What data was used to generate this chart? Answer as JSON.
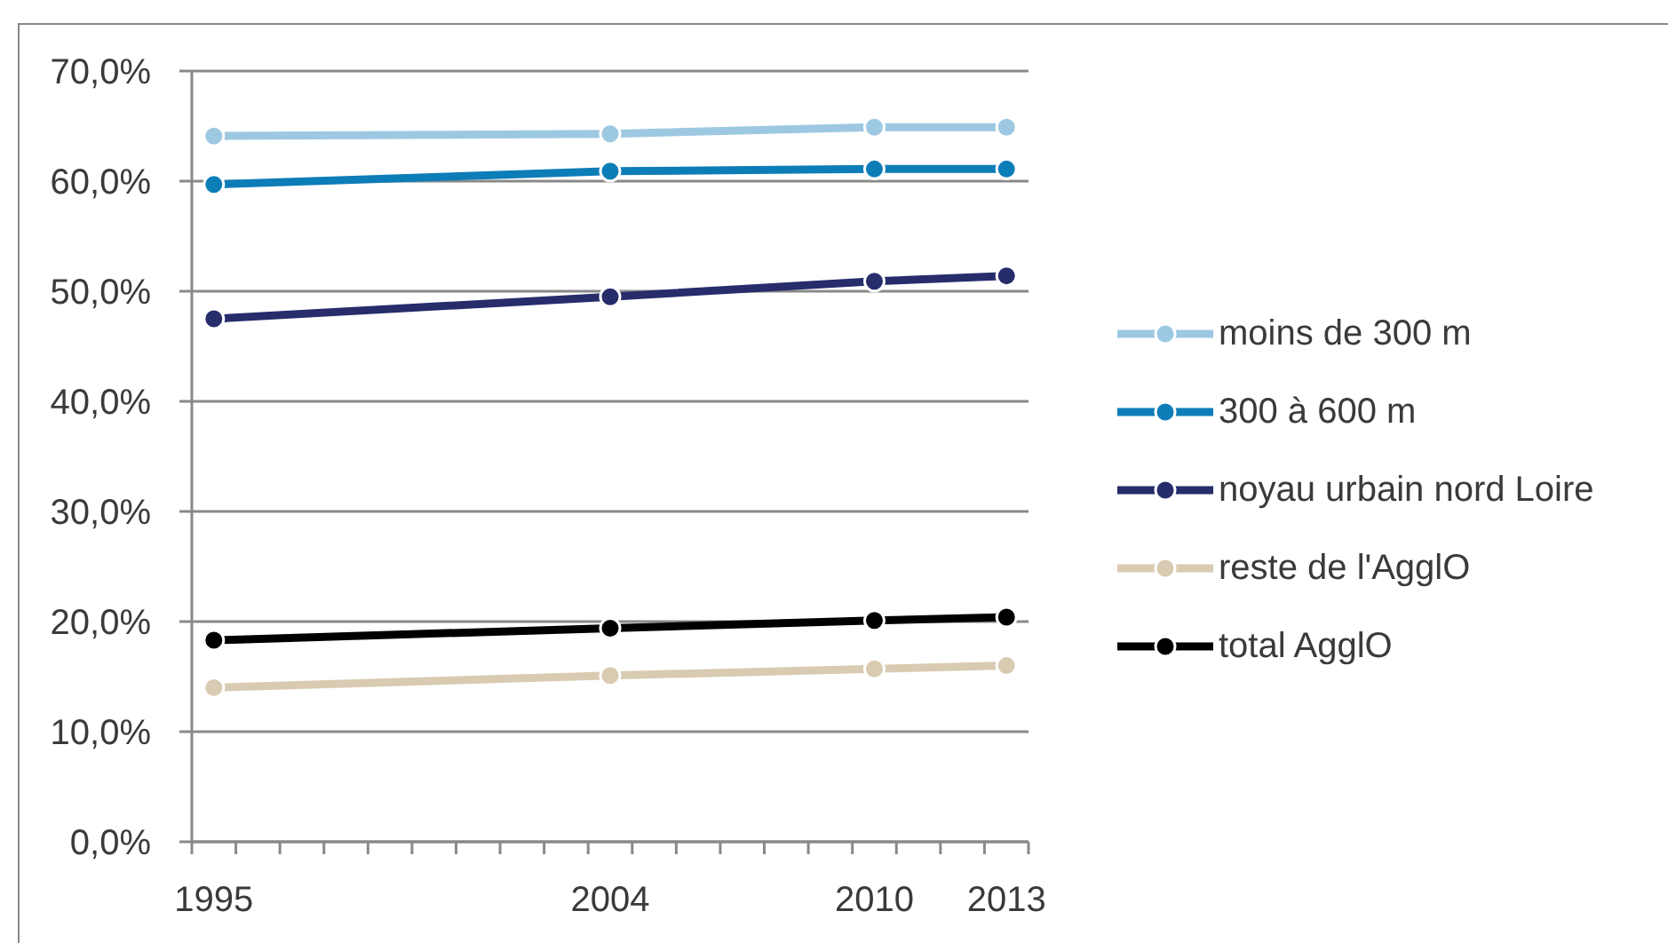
{
  "chart_data": {
    "type": "line",
    "x": [
      1995,
      2004,
      2010,
      2013
    ],
    "xlim": [
      1994.5,
      2013.5
    ],
    "xticks": [
      {
        "value": 1994.5,
        "label": null
      },
      1995,
      {
        "value": 1995.5,
        "label": null
      },
      {
        "value": 1996.5,
        "label": null
      },
      {
        "value": 1997.5,
        "label": null
      },
      {
        "value": 1998.5,
        "label": null
      },
      {
        "value": 1999.5,
        "label": null
      },
      {
        "value": 2000.5,
        "label": null
      },
      {
        "value": 2001.5,
        "label": null
      },
      {
        "value": 2002.5,
        "label": null
      },
      {
        "value": 2003.5,
        "label": null
      },
      2004,
      {
        "value": 2004.5,
        "label": null
      },
      {
        "value": 2005.5,
        "label": null
      },
      {
        "value": 2006.5,
        "label": null
      },
      {
        "value": 2007.5,
        "label": null
      },
      {
        "value": 2008.5,
        "label": null
      },
      {
        "value": 2009.5,
        "label": null
      },
      2010,
      {
        "value": 2010.5,
        "label": null
      },
      {
        "value": 2011.5,
        "label": null
      },
      {
        "value": 2012.5,
        "label": null
      },
      2013,
      {
        "value": 2013.5,
        "label": null
      }
    ],
    "ylim": [
      0,
      70
    ],
    "yticks": [
      {
        "value": 0,
        "label": "0,0%"
      },
      {
        "value": 10,
        "label": "10,0%"
      },
      {
        "value": 20,
        "label": "20,0%"
      },
      {
        "value": 30,
        "label": "30,0%"
      },
      {
        "value": 40,
        "label": "40,0%"
      },
      {
        "value": 50,
        "label": "50,0%"
      },
      {
        "value": 60,
        "label": "60,0%"
      },
      {
        "value": 70,
        "label": "70,0%"
      }
    ],
    "grid": "y",
    "legend": "right",
    "marker": "circle",
    "line_style": "solid",
    "series": [
      {
        "name": "moins de 300 m",
        "color": "#9dc8e2",
        "values": [
          64.1,
          64.3,
          64.9,
          64.9
        ]
      },
      {
        "name": "300 à 600 m",
        "color": "#0d7db8",
        "values": [
          59.7,
          60.9,
          61.1,
          61.1
        ]
      },
      {
        "name": "noyau urbain nord Loire",
        "color": "#272c6b",
        "values": [
          47.5,
          49.5,
          50.9,
          51.4
        ]
      },
      {
        "name": "reste de l'AgglO",
        "color": "#d8cbb1",
        "values": [
          14.0,
          15.1,
          15.7,
          16.0
        ]
      },
      {
        "name": "total AgglO",
        "color": "#000000",
        "values": [
          18.3,
          19.4,
          20.1,
          20.4
        ]
      }
    ]
  }
}
